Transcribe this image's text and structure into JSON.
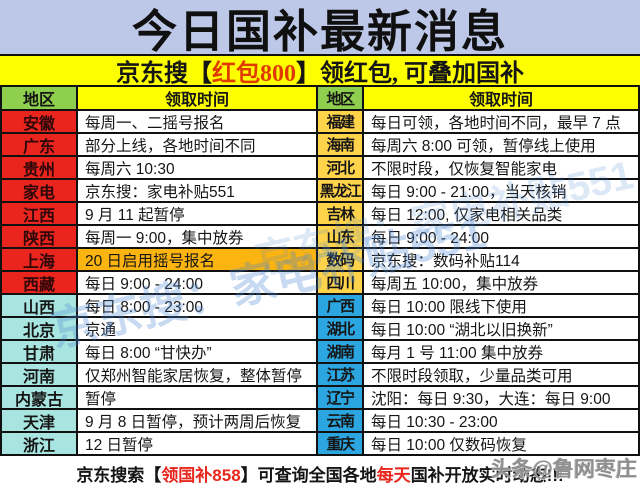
{
  "title": "今日国补最新消息",
  "banner": {
    "prefix": "京东搜【",
    "highlight": "红包800",
    "suffix": "】领红包, 可叠加国补"
  },
  "header": {
    "region": "地区",
    "time": "领取时间"
  },
  "rows": [
    {
      "l_region": "安徽",
      "l_time": "每周一、二摇号报名",
      "r_region": "福建",
      "r_time": "每日可领，各地时间不同，最早 7 点"
    },
    {
      "l_region": "广东",
      "l_time": "部分上线，各地时间不同",
      "r_region": "海南",
      "r_time": "每周六 8:00 可领，暂停线上使用"
    },
    {
      "l_region": "贵州",
      "l_time": "每周六 10:30",
      "r_region": "河北",
      "r_time": "不限时段，仅恢复智能家电"
    },
    {
      "l_region": "家电",
      "l_time": "京东搜：家电补贴551",
      "r_region": "黑龙江",
      "r_time": "每日 9:00 - 21:00，当天核销"
    },
    {
      "l_region": "江西",
      "l_time": "9 月 11 起暂停",
      "r_region": "吉林",
      "r_time": "每日 12:00, 仅家电相关品类"
    },
    {
      "l_region": "陕西",
      "l_time": "每周一 9:00，集中放券",
      "r_region": "山东",
      "r_time": "每日 9:00 - 24:00"
    },
    {
      "l_region": "上海",
      "l_time": "20 日启用摇号报名",
      "r_region": "数码",
      "r_time": "京东搜：数码补贴114"
    },
    {
      "l_region": "西藏",
      "l_time": "每日 9:00 - 24:00",
      "r_region": "四川",
      "r_time": "每周五 10:00，集中放券"
    },
    {
      "l_region": "山西",
      "l_time": "每日 8:00 - 23:00",
      "r_region": "广西",
      "r_time": "每日 10:00 限线下使用"
    },
    {
      "l_region": "北京",
      "l_time": "京通",
      "r_region": "湖北",
      "r_time": "每日 10:00 “湖北以旧换新”"
    },
    {
      "l_region": "甘肃",
      "l_time": "每日 8:00 “甘快办”",
      "r_region": "湖南",
      "r_time": "每月 1 号 11:00 集中放券"
    },
    {
      "l_region": "河南",
      "l_time": "仅郑州智能家居恢复，整体暂停",
      "r_region": "江苏",
      "r_time": "不限时段领取，少量品类可用"
    },
    {
      "l_region": "内蒙古",
      "l_time": "暂停",
      "r_region": "辽宁",
      "r_time": "沈阳：每日 9:30，大连：每日 9:00"
    },
    {
      "l_region": "天津",
      "l_time": "9 月 8 日暂停，预计两周后恢复",
      "r_region": "云南",
      "r_time": "每日 10:30 - 23:00"
    },
    {
      "l_region": "浙江",
      "l_time": "12 日暂停",
      "r_region": "重庆",
      "r_time": "每日 10:00 仅数码恢复"
    }
  ],
  "footer": {
    "p1": "京东搜索【",
    "red1": "领国补858",
    "p2": "】可查询全国各地",
    "red2": "每天",
    "p3": "国补开放实时动态!!!"
  },
  "watermarks": {
    "diagonal": "京东搜：家电补贴551",
    "corner": "头条@鲁网枣庄"
  },
  "colors": {
    "title_bg": "#bdc7e7",
    "banner_bg": "#fdff00",
    "banner_red": "#e03c00",
    "header_green": "#8ed04e",
    "header_yellow": "#fdff00",
    "region_red": "#e9251e",
    "region_cyan": "#a9e5e0",
    "region_gold": "#ffd44a",
    "region_blue": "#2ca6e0",
    "highlight_orange": "#fcb410",
    "footer_red": "#e8281e",
    "grid_black": "#111111",
    "watermark_blue": "#4986d2",
    "watermark_gray": "#8f8f8f"
  }
}
